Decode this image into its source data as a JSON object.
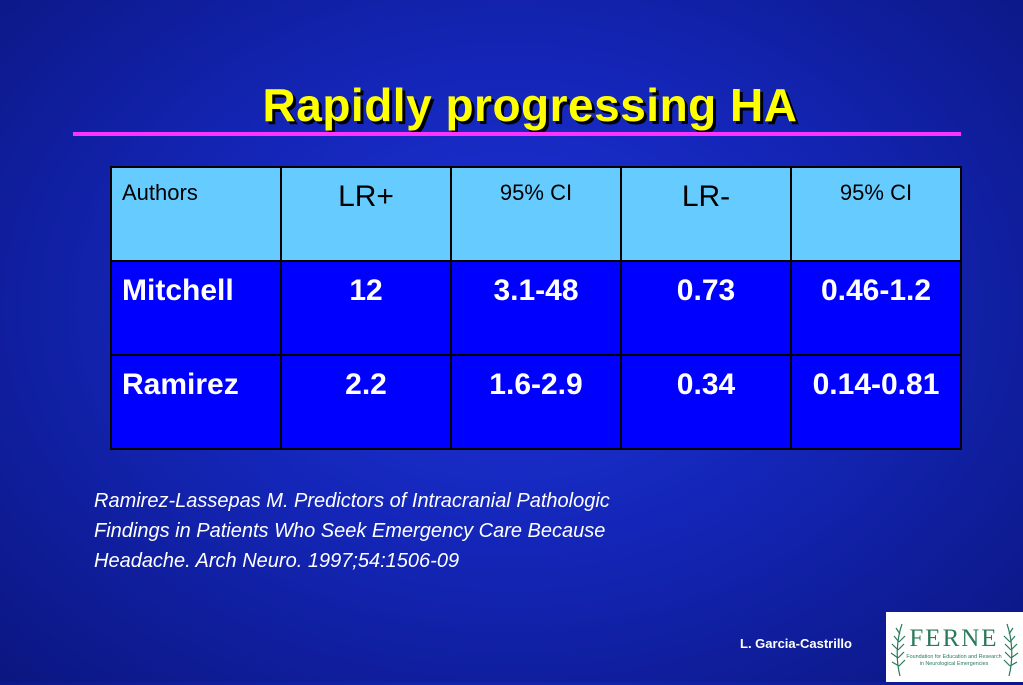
{
  "slide": {
    "title": "Rapidly progressing HA"
  },
  "table": {
    "headers": [
      "Authors",
      "LR+",
      "95% CI",
      "LR-",
      "95% CI"
    ],
    "rows": [
      [
        "Mitchell",
        "12",
        "3.1-48",
        "0.73",
        "0.46-1.2"
      ],
      [
        "Ramirez",
        "2.2",
        "1.6-2.9",
        "0.34",
        "0.14-0.81"
      ]
    ]
  },
  "citation": {
    "lines": [
      "Ramirez-Lassepas M. Predictors of Intracranial Pathologic",
      "Findings in Patients Who Seek Emergency Care Because",
      "Headache. Arch Neuro. 1997;54:1506-09"
    ]
  },
  "footer": {
    "author": "L. Garcia-Castrillo",
    "logo_name": "FERNE",
    "logo_tagline_1": "Foundation for Education and Research",
    "logo_tagline_2": "in Neurological Emergencies"
  },
  "colors": {
    "title": "#ffff00",
    "rule": "#ff33ff",
    "header_cell": "#66ccff",
    "body_cell": "#0000ff",
    "logo_text": "#2a7a5a"
  },
  "icons": {
    "logo": "ferne-logo-icon"
  }
}
